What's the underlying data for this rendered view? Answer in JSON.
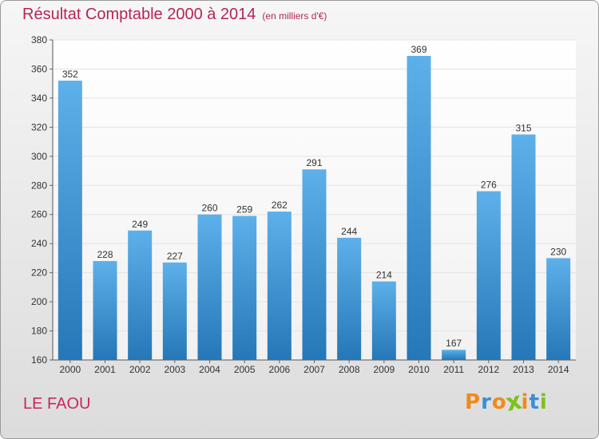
{
  "header": {
    "title": "Résultat Comptable 2000 à 2014",
    "subtitle": "(en milliers d'€)"
  },
  "footer": {
    "commune": "LE FAOU",
    "logo_text": "Proxiti"
  },
  "colors": {
    "title": "#b5245a",
    "bar_light": "#5eb0ea",
    "bar_dark": "#2577b7",
    "grid": "#e4e4e4",
    "logo": [
      "#f08a1c",
      "#3a8fd6",
      "#f08a1c",
      "#7cc11f",
      "#f08a1c",
      "#3a8fd6",
      "#7cc11f"
    ]
  },
  "chart_data": {
    "type": "bar",
    "title": "Résultat Comptable 2000 à 2014",
    "subtitle": "(en milliers d'€)",
    "categories": [
      "2000",
      "2001",
      "2002",
      "2003",
      "2004",
      "2005",
      "2006",
      "2007",
      "2008",
      "2009",
      "2010",
      "2011",
      "2012",
      "2013",
      "2014"
    ],
    "values": [
      352,
      228,
      249,
      227,
      260,
      259,
      262,
      291,
      244,
      214,
      369,
      167,
      276,
      315,
      230
    ],
    "ylim": [
      160,
      380
    ],
    "yticks": [
      160,
      180,
      200,
      220,
      240,
      260,
      280,
      300,
      320,
      340,
      360,
      380
    ],
    "grid": true,
    "legend": "none"
  }
}
